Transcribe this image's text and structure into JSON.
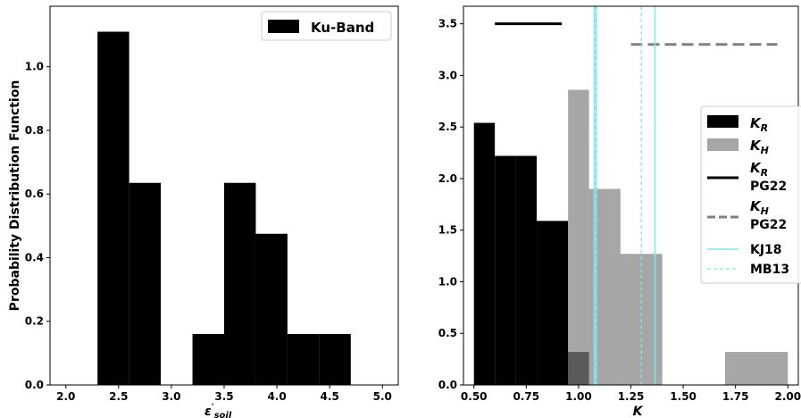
{
  "chart_data": [
    {
      "type": "bar",
      "subtype": "histogram",
      "xlabel_main": "ε",
      "xlabel_sup": "'",
      "xlabel_sub": "soil",
      "ylabel": "Probability Distribution Function",
      "xlim": [
        1.85,
        5.15
      ],
      "ylim": [
        0,
        1.19
      ],
      "xticks": [
        "2.0",
        "2.5",
        "3.0",
        "3.5",
        "4.0",
        "4.5",
        "5.0"
      ],
      "yticks": [
        "0.0",
        "0.2",
        "0.4",
        "0.6",
        "0.8",
        "1.0"
      ],
      "grid": false,
      "legend_position": "top-right",
      "series": [
        {
          "name": "Ku-Band",
          "color": "#000000",
          "bins": [
            {
              "x0": 2.3,
              "x1": 2.6,
              "value": 1.11
            },
            {
              "x0": 2.6,
              "x1": 2.9,
              "value": 0.635
            },
            {
              "x0": 3.2,
              "x1": 3.5,
              "value": 0.16
            },
            {
              "x0": 3.5,
              "x1": 3.8,
              "value": 0.635
            },
            {
              "x0": 3.8,
              "x1": 4.1,
              "value": 0.475
            },
            {
              "x0": 4.1,
              "x1": 4.4,
              "value": 0.16
            },
            {
              "x0": 4.4,
              "x1": 4.7,
              "value": 0.16
            }
          ]
        }
      ]
    },
    {
      "type": "bar",
      "subtype": "histogram",
      "xlabel": "K",
      "ylabel": "",
      "xlim": [
        0.45,
        2.05
      ],
      "ylim": [
        0,
        3.67
      ],
      "xticks": [
        "0.50",
        "0.75",
        "1.00",
        "1.25",
        "1.50",
        "1.75",
        "2.00"
      ],
      "yticks": [
        "0.0",
        "0.5",
        "1.0",
        "1.5",
        "2.0",
        "2.5",
        "3.0",
        "3.5"
      ],
      "grid": false,
      "legend_position": "center-right",
      "series": [
        {
          "name": "K",
          "name_sub": "R",
          "color": "#000000",
          "opacity": 1,
          "bins": [
            {
              "x0": 0.5,
              "x1": 0.6,
              "value": 2.54
            },
            {
              "x0": 0.6,
              "x1": 0.7,
              "value": 2.22
            },
            {
              "x0": 0.7,
              "x1": 0.8,
              "value": 2.22
            },
            {
              "x0": 0.8,
              "x1": 0.95,
              "value": 1.59
            },
            {
              "x0": 0.95,
              "x1": 1.05,
              "value": 0.32
            }
          ]
        },
        {
          "name": "K",
          "name_sub": "H",
          "color": "#808080",
          "opacity": 0.7,
          "bins": [
            {
              "x0": 0.95,
              "x1": 1.05,
              "value": 2.86
            },
            {
              "x0": 1.05,
              "x1": 1.2,
              "value": 1.9
            },
            {
              "x0": 1.2,
              "x1": 1.4,
              "value": 1.27
            },
            {
              "x0": 1.7,
              "x1": 2.0,
              "value": 0.32
            }
          ]
        }
      ],
      "lines": [
        {
          "name": "K",
          "name_sub": "R",
          "name_line2": "PG22",
          "kind": "horizontal",
          "style": "solid",
          "color": "#000000",
          "y": 3.5,
          "x0": 0.6,
          "x1": 0.92
        },
        {
          "name": "K",
          "name_sub": "H",
          "name_line2": "PG22",
          "kind": "horizontal",
          "style": "dashed",
          "color": "#808080",
          "y": 3.3,
          "x0": 1.25,
          "x1": 1.95
        },
        {
          "name": "KJ18",
          "kind": "vertical",
          "style": "solid",
          "color": "#7fe8ee",
          "x": [
            1.075,
            1.085,
            1.365
          ]
        },
        {
          "name": "MB13",
          "kind": "vertical",
          "style": "dashed",
          "color": "#7fe8ee",
          "x": [
            1.08,
            1.3
          ]
        }
      ]
    }
  ]
}
